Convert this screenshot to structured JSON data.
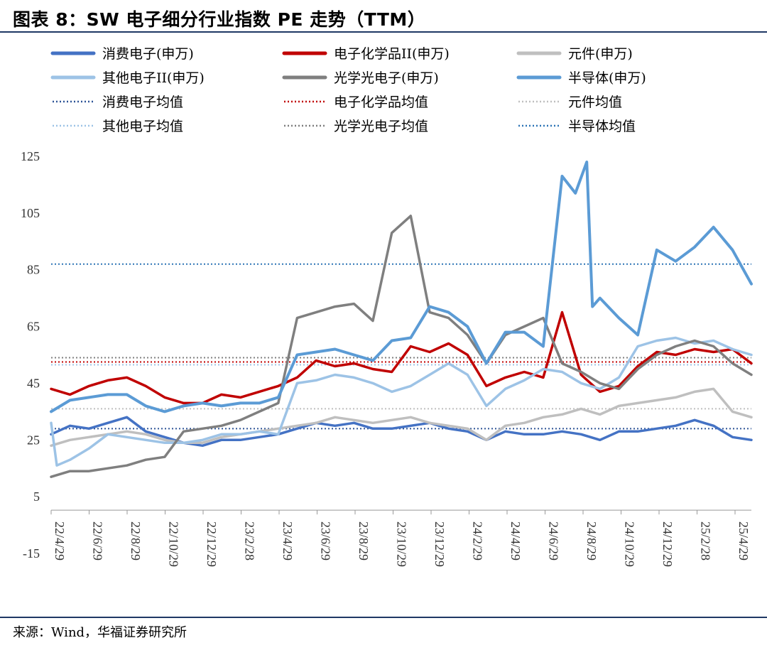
{
  "header": {
    "title": "图表 8：SW 电子细分行业指数 PE 走势（TTM）"
  },
  "footer": {
    "source": "来源：Wind，华福证券研究所"
  },
  "chart_data": {
    "type": "line",
    "title": "图表 8：SW 电子细分行业指数 PE 走势（TTM）",
    "xlabel": "",
    "ylabel": "",
    "ylim": [
      -15,
      125
    ],
    "yticks": [
      125,
      105,
      85,
      65,
      45,
      25,
      5,
      -15
    ],
    "x_tick_labels": [
      "22/4/29",
      "22/6/29",
      "22/8/29",
      "22/10/29",
      "22/12/29",
      "23/2/28",
      "23/4/29",
      "23/6/29",
      "23/8/29",
      "23/10/29",
      "23/12/29",
      "24/2/29",
      "24/4/29",
      "24/6/29",
      "24/8/29",
      "24/10/29",
      "24/12/29",
      "25/2/28",
      "25/4/29"
    ],
    "x_range": [
      0,
      37
    ],
    "grid": false,
    "legend_position": "top",
    "series": [
      {
        "name": "消费电子(申万)",
        "color": "#4472c4",
        "width": 3.5,
        "style": "solid",
        "points": [
          [
            0,
            27
          ],
          [
            1,
            30
          ],
          [
            2,
            29
          ],
          [
            3,
            31
          ],
          [
            4,
            33
          ],
          [
            5,
            28
          ],
          [
            6,
            26
          ],
          [
            7,
            24
          ],
          [
            8,
            23
          ],
          [
            9,
            25
          ],
          [
            10,
            25
          ],
          [
            11,
            26
          ],
          [
            12,
            27
          ],
          [
            13,
            29
          ],
          [
            14,
            31
          ],
          [
            15,
            30
          ],
          [
            16,
            31
          ],
          [
            17,
            29
          ],
          [
            18,
            29
          ],
          [
            19,
            30
          ],
          [
            20,
            31
          ],
          [
            21,
            29
          ],
          [
            22,
            28
          ],
          [
            23,
            25
          ],
          [
            24,
            28
          ],
          [
            25,
            27
          ],
          [
            26,
            27
          ],
          [
            27,
            28
          ],
          [
            28,
            27
          ],
          [
            29,
            25
          ],
          [
            30,
            28
          ],
          [
            31,
            28
          ],
          [
            32,
            29
          ],
          [
            33,
            30
          ],
          [
            34,
            32
          ],
          [
            35,
            30
          ],
          [
            36,
            26
          ],
          [
            37,
            25
          ]
        ]
      },
      {
        "name": "电子化学品II(申万)",
        "color": "#c00000",
        "width": 3.5,
        "style": "solid",
        "points": [
          [
            0,
            43
          ],
          [
            1,
            41
          ],
          [
            2,
            44
          ],
          [
            3,
            46
          ],
          [
            4,
            47
          ],
          [
            5,
            44
          ],
          [
            6,
            40
          ],
          [
            7,
            38
          ],
          [
            8,
            38
          ],
          [
            9,
            41
          ],
          [
            10,
            40
          ],
          [
            11,
            42
          ],
          [
            12,
            44
          ],
          [
            13,
            47
          ],
          [
            14,
            53
          ],
          [
            15,
            51
          ],
          [
            16,
            52
          ],
          [
            17,
            50
          ],
          [
            18,
            49
          ],
          [
            19,
            58
          ],
          [
            20,
            56
          ],
          [
            21,
            59
          ],
          [
            22,
            55
          ],
          [
            23,
            44
          ],
          [
            24,
            47
          ],
          [
            25,
            49
          ],
          [
            26,
            47
          ],
          [
            27,
            70
          ],
          [
            28,
            48
          ],
          [
            29,
            42
          ],
          [
            30,
            44
          ],
          [
            31,
            51
          ],
          [
            32,
            56
          ],
          [
            33,
            55
          ],
          [
            34,
            57
          ],
          [
            35,
            56
          ],
          [
            36,
            57
          ],
          [
            37,
            52
          ]
        ]
      },
      {
        "name": "元件(申万)",
        "color": "#bfbfbf",
        "width": 3.5,
        "style": "solid",
        "points": [
          [
            0,
            23
          ],
          [
            1,
            25
          ],
          [
            2,
            26
          ],
          [
            3,
            27
          ],
          [
            4,
            28
          ],
          [
            5,
            27
          ],
          [
            6,
            25
          ],
          [
            7,
            24
          ],
          [
            8,
            24
          ],
          [
            9,
            26
          ],
          [
            10,
            27
          ],
          [
            11,
            28
          ],
          [
            12,
            29
          ],
          [
            13,
            30
          ],
          [
            14,
            31
          ],
          [
            15,
            33
          ],
          [
            16,
            32
          ],
          [
            17,
            31
          ],
          [
            18,
            32
          ],
          [
            19,
            33
          ],
          [
            20,
            31
          ],
          [
            21,
            30
          ],
          [
            22,
            29
          ],
          [
            23,
            25
          ],
          [
            24,
            30
          ],
          [
            25,
            31
          ],
          [
            26,
            33
          ],
          [
            27,
            34
          ],
          [
            28,
            36
          ],
          [
            29,
            34
          ],
          [
            30,
            37
          ],
          [
            31,
            38
          ],
          [
            32,
            39
          ],
          [
            33,
            40
          ],
          [
            34,
            42
          ],
          [
            35,
            43
          ],
          [
            36,
            35
          ],
          [
            37,
            33
          ]
        ]
      },
      {
        "name": "其他电子II(申万)",
        "color": "#9dc3e6",
        "width": 3.5,
        "style": "solid",
        "points": [
          [
            0,
            31
          ],
          [
            0.3,
            16
          ],
          [
            1,
            18
          ],
          [
            2,
            22
          ],
          [
            3,
            27
          ],
          [
            4,
            26
          ],
          [
            5,
            25
          ],
          [
            6,
            24
          ],
          [
            7,
            24
          ],
          [
            8,
            25
          ],
          [
            9,
            27
          ],
          [
            10,
            27
          ],
          [
            11,
            28
          ],
          [
            12,
            27
          ],
          [
            13,
            45
          ],
          [
            14,
            46
          ],
          [
            15,
            48
          ],
          [
            16,
            47
          ],
          [
            17,
            45
          ],
          [
            18,
            42
          ],
          [
            19,
            44
          ],
          [
            20,
            48
          ],
          [
            21,
            52
          ],
          [
            22,
            48
          ],
          [
            23,
            37
          ],
          [
            24,
            43
          ],
          [
            25,
            46
          ],
          [
            26,
            50
          ],
          [
            27,
            49
          ],
          [
            28,
            45
          ],
          [
            29,
            43
          ],
          [
            30,
            47
          ],
          [
            31,
            58
          ],
          [
            32,
            60
          ],
          [
            33,
            61
          ],
          [
            34,
            59
          ],
          [
            35,
            60
          ],
          [
            36,
            57
          ],
          [
            37,
            55
          ]
        ]
      },
      {
        "name": "光学光电子(申万)",
        "color": "#7f7f7f",
        "width": 3.5,
        "style": "solid",
        "points": [
          [
            0,
            12
          ],
          [
            1,
            14
          ],
          [
            2,
            14
          ],
          [
            3,
            15
          ],
          [
            4,
            16
          ],
          [
            5,
            18
          ],
          [
            6,
            19
          ],
          [
            7,
            28
          ],
          [
            8,
            29
          ],
          [
            9,
            30
          ],
          [
            10,
            32
          ],
          [
            11,
            35
          ],
          [
            12,
            38
          ],
          [
            13,
            68
          ],
          [
            14,
            70
          ],
          [
            15,
            72
          ],
          [
            16,
            73
          ],
          [
            17,
            67
          ],
          [
            18,
            98
          ],
          [
            19,
            104
          ],
          [
            20,
            70
          ],
          [
            21,
            68
          ],
          [
            22,
            62
          ],
          [
            23,
            52
          ],
          [
            24,
            62
          ],
          [
            25,
            65
          ],
          [
            26,
            68
          ],
          [
            27,
            52
          ],
          [
            28,
            49
          ],
          [
            29,
            45
          ],
          [
            30,
            43
          ],
          [
            31,
            50
          ],
          [
            32,
            55
          ],
          [
            33,
            58
          ],
          [
            34,
            60
          ],
          [
            35,
            58
          ],
          [
            36,
            52
          ],
          [
            37,
            48
          ]
        ]
      },
      {
        "name": "半导体(申万)",
        "color": "#5b9bd5",
        "width": 4,
        "style": "solid",
        "points": [
          [
            0,
            35
          ],
          [
            1,
            39
          ],
          [
            2,
            40
          ],
          [
            3,
            41
          ],
          [
            4,
            41
          ],
          [
            5,
            37
          ],
          [
            6,
            35
          ],
          [
            7,
            37
          ],
          [
            8,
            38
          ],
          [
            9,
            37
          ],
          [
            10,
            38
          ],
          [
            11,
            38
          ],
          [
            12,
            40
          ],
          [
            13,
            55
          ],
          [
            14,
            56
          ],
          [
            15,
            57
          ],
          [
            16,
            55
          ],
          [
            17,
            53
          ],
          [
            18,
            60
          ],
          [
            19,
            61
          ],
          [
            20,
            72
          ],
          [
            21,
            70
          ],
          [
            22,
            65
          ],
          [
            23,
            52
          ],
          [
            24,
            63
          ],
          [
            25,
            63
          ],
          [
            26,
            58
          ],
          [
            27,
            118
          ],
          [
            27.7,
            112
          ],
          [
            28.3,
            123
          ],
          [
            28.6,
            72
          ],
          [
            29,
            75
          ],
          [
            30,
            68
          ],
          [
            31,
            62
          ],
          [
            32,
            92
          ],
          [
            33,
            88
          ],
          [
            34,
            93
          ],
          [
            35,
            100
          ],
          [
            36,
            92
          ],
          [
            37,
            80
          ]
        ]
      },
      {
        "name": "消费电子均值",
        "color": "#2f5597",
        "width": 2,
        "style": "dotted",
        "mean": 29
      },
      {
        "name": "电子化学品均值",
        "color": "#c00000",
        "width": 2,
        "style": "dotted",
        "mean": 52.5
      },
      {
        "name": "元件均值",
        "color": "#bfbfbf",
        "width": 2,
        "style": "dotted",
        "mean": 36
      },
      {
        "name": "其他电子均值",
        "color": "#9dc3e6",
        "width": 2,
        "style": "dotted",
        "mean": 51.5
      },
      {
        "name": "光学光电子均值",
        "color": "#7f7f7f",
        "width": 2,
        "style": "dotted",
        "mean": 54
      },
      {
        "name": "半导体均值",
        "color": "#2e75b6",
        "width": 2,
        "style": "dotted",
        "mean": 87
      }
    ]
  }
}
